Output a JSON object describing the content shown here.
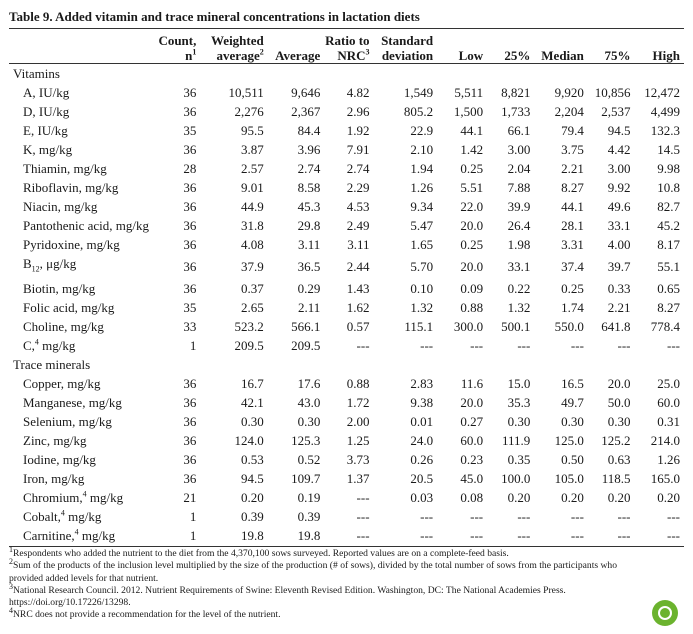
{
  "title": "Table 9. Added vitamin and trace mineral concentrations in lactation diets",
  "headers": [
    {
      "text": "",
      "sup": ""
    },
    {
      "text": "Count, n",
      "sup": "1"
    },
    {
      "text": "Weighted average",
      "sup": "2"
    },
    {
      "text": "Average",
      "sup": ""
    },
    {
      "text": "Ratio to NRC",
      "sup": "3"
    },
    {
      "text": "Standard deviation",
      "sup": ""
    },
    {
      "text": "Low",
      "sup": ""
    },
    {
      "text": "25%",
      "sup": ""
    },
    {
      "text": "Median",
      "sup": ""
    },
    {
      "text": "75%",
      "sup": ""
    },
    {
      "text": "High",
      "sup": ""
    }
  ],
  "sections": [
    {
      "name": "Vitamins",
      "rows": [
        {
          "label": "A, IU/kg",
          "values": [
            "36",
            "10,511",
            "9,646",
            "4.82",
            "1,549",
            "5,511",
            "8,821",
            "9,920",
            "10,856",
            "12,472"
          ]
        },
        {
          "label": "D, IU/kg",
          "values": [
            "36",
            "2,276",
            "2,367",
            "2.96",
            "805.2",
            "1,500",
            "1,733",
            "2,204",
            "2,537",
            "4,499"
          ]
        },
        {
          "label": "E, IU/kg",
          "values": [
            "35",
            "95.5",
            "84.4",
            "1.92",
            "22.9",
            "44.1",
            "66.1",
            "79.4",
            "94.5",
            "132.3"
          ]
        },
        {
          "label": "K, mg/kg",
          "values": [
            "36",
            "3.87",
            "3.96",
            "7.91",
            "2.10",
            "1.42",
            "3.00",
            "3.75",
            "4.42",
            "14.5"
          ]
        },
        {
          "label": "Thiamin, mg/kg",
          "values": [
            "28",
            "2.57",
            "2.74",
            "2.74",
            "1.94",
            "0.25",
            "2.04",
            "2.21",
            "3.00",
            "9.98"
          ]
        },
        {
          "label": "Riboflavin, mg/kg",
          "values": [
            "36",
            "9.01",
            "8.58",
            "2.29",
            "1.26",
            "5.51",
            "7.88",
            "8.27",
            "9.92",
            "10.8"
          ]
        },
        {
          "label": "Niacin, mg/kg",
          "values": [
            "36",
            "44.9",
            "45.3",
            "4.53",
            "9.34",
            "22.0",
            "39.9",
            "44.1",
            "49.6",
            "82.7"
          ]
        },
        {
          "label": "Pantothenic acid, mg/kg",
          "values": [
            "36",
            "31.8",
            "29.8",
            "2.49",
            "5.47",
            "20.0",
            "26.4",
            "28.1",
            "33.1",
            "45.2"
          ]
        },
        {
          "label": "Pyridoxine, mg/kg",
          "values": [
            "36",
            "4.08",
            "3.11",
            "3.11",
            "1.65",
            "0.25",
            "1.98",
            "3.31",
            "4.00",
            "8.17"
          ]
        },
        {
          "label": "B",
          "sub": "12",
          "suffix": ", μg/kg",
          "values": [
            "36",
            "37.9",
            "36.5",
            "2.44",
            "5.70",
            "20.0",
            "33.1",
            "37.4",
            "39.7",
            "55.1"
          ]
        },
        {
          "label": "Biotin, mg/kg",
          "values": [
            "36",
            "0.37",
            "0.29",
            "1.43",
            "0.10",
            "0.09",
            "0.22",
            "0.25",
            "0.33",
            "0.65"
          ]
        },
        {
          "label": "Folic acid, mg/kg",
          "values": [
            "35",
            "2.65",
            "2.11",
            "1.62",
            "1.32",
            "0.88",
            "1.32",
            "1.74",
            "2.21",
            "8.27"
          ]
        },
        {
          "label": "Choline, mg/kg",
          "values": [
            "33",
            "523.2",
            "566.1",
            "0.57",
            "115.1",
            "300.0",
            "500.1",
            "550.0",
            "641.8",
            "778.4"
          ]
        },
        {
          "label": "C,",
          "sup": "4",
          "suffix": " mg/kg",
          "values": [
            "1",
            "209.5",
            "209.5",
            "---",
            "---",
            "---",
            "---",
            "---",
            "---",
            "---"
          ]
        }
      ]
    },
    {
      "name": "Trace minerals",
      "rows": [
        {
          "label": "Copper, mg/kg",
          "values": [
            "36",
            "16.7",
            "17.6",
            "0.88",
            "2.83",
            "11.6",
            "15.0",
            "16.5",
            "20.0",
            "25.0"
          ]
        },
        {
          "label": "Manganese, mg/kg",
          "values": [
            "36",
            "42.1",
            "43.0",
            "1.72",
            "9.38",
            "20.0",
            "35.3",
            "49.7",
            "50.0",
            "60.0"
          ]
        },
        {
          "label": "Selenium, mg/kg",
          "values": [
            "36",
            "0.30",
            "0.30",
            "2.00",
            "0.01",
            "0.27",
            "0.30",
            "0.30",
            "0.30",
            "0.31"
          ]
        },
        {
          "label": "Zinc, mg/kg",
          "values": [
            "36",
            "124.0",
            "125.3",
            "1.25",
            "24.0",
            "60.0",
            "111.9",
            "125.0",
            "125.2",
            "214.0"
          ]
        },
        {
          "label": "Iodine, mg/kg",
          "values": [
            "36",
            "0.53",
            "0.52",
            "3.73",
            "0.26",
            "0.23",
            "0.35",
            "0.50",
            "0.63",
            "1.26"
          ]
        },
        {
          "label": "Iron, mg/kg",
          "values": [
            "36",
            "94.5",
            "109.7",
            "1.37",
            "20.5",
            "45.0",
            "100.0",
            "105.0",
            "118.5",
            "165.0"
          ]
        },
        {
          "label": "Chromium,",
          "sup": "4",
          "suffix": " mg/kg",
          "values": [
            "21",
            "0.20",
            "0.19",
            "---",
            "0.03",
            "0.08",
            "0.20",
            "0.20",
            "0.20",
            "0.20"
          ]
        },
        {
          "label": "Cobalt,",
          "sup": "4",
          "suffix": " mg/kg",
          "values": [
            "1",
            "0.39",
            "0.39",
            "---",
            "---",
            "---",
            "---",
            "---",
            "---",
            "---"
          ]
        },
        {
          "label": "Carnitine,",
          "sup": "4",
          "suffix": " mg/kg",
          "values": [
            "1",
            "19.8",
            "19.8",
            "---",
            "---",
            "---",
            "---",
            "---",
            "---",
            "---"
          ]
        }
      ]
    }
  ],
  "footnotes": [
    {
      "num": "1",
      "text": "Respondents who added the nutrient to the diet from the 4,370,100 sows surveyed. Reported values are on a complete-feed basis."
    },
    {
      "num": "2",
      "text": "Sum of the products of the inclusion level multiplied by the size of the production (# of sows), divided by the total number of sows from the participants who provided added levels for that nutrient."
    },
    {
      "num": "3",
      "text": "National Research Council. 2012. Nutrient Requirements of Swine: Eleventh Revised Edition. Washington, DC: The National Academies Press. https://doi.org/10.17226/13298."
    },
    {
      "num": "4",
      "text": "NRC does not provide a recommendation for the level of the nutrient."
    }
  ]
}
